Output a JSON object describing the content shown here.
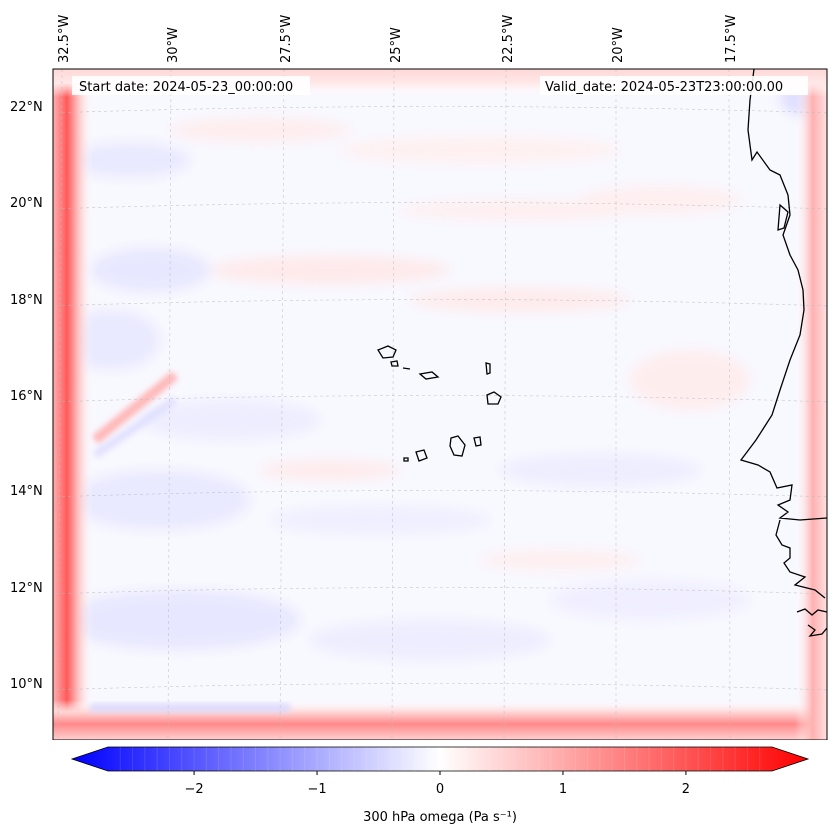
{
  "header": {
    "start_date": "Start date: 2024-05-23_00:00:00",
    "valid_date": "Valid_date: 2024-05-23T23:00:00.00"
  },
  "map": {
    "region": "Cape Verde / West African coast",
    "lon_labels": [
      "32.5°W",
      "30°W",
      "27.5°W",
      "25°W",
      "22.5°W",
      "20°W",
      "17.5°W"
    ],
    "lat_labels": [
      "22°N",
      "20°N",
      "18°N",
      "16°N",
      "14°N",
      "12°N",
      "10°N"
    ],
    "gridlines": "dashed light gray",
    "coastline_color": "#000000"
  },
  "colorbar": {
    "label": "300 hPa omega (Pa s⁻¹)",
    "ticks": [
      "−2",
      "−1",
      "0",
      "1",
      "2"
    ],
    "range": [
      -2.7,
      2.7
    ],
    "extend": "both",
    "colormap": "bwr",
    "neg_color": "#0000ff",
    "mid_color": "#ffffff",
    "pos_color": "#ff0000"
  }
}
